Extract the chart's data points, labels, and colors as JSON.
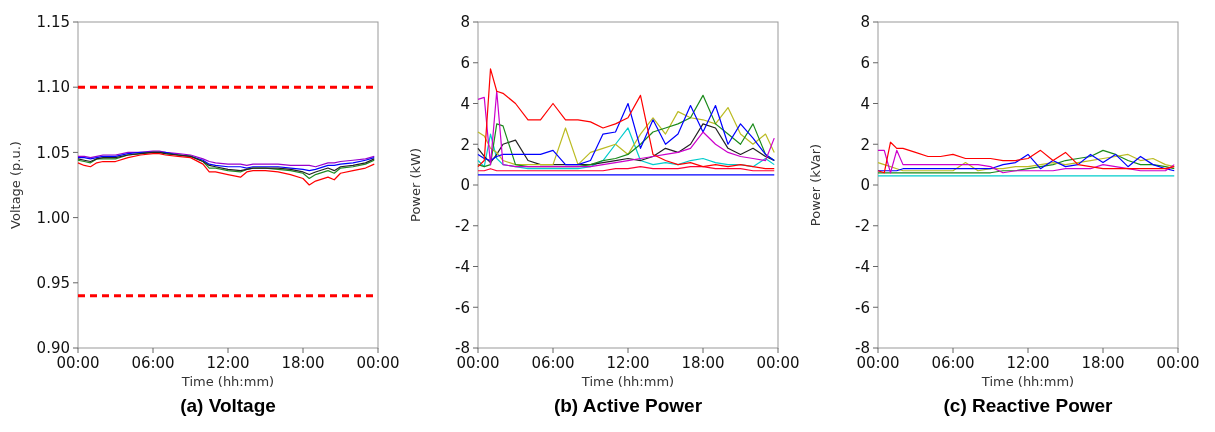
{
  "chart_data": [
    {
      "type": "line",
      "title": "(a)  Voltage",
      "xlabel": "Time (hh:mm)",
      "ylabel": "Voltage (p.u.)",
      "x": [
        0,
        0.5,
        1,
        1.5,
        2,
        3,
        4,
        5,
        6,
        6.5,
        7,
        8,
        9,
        10,
        10.5,
        11,
        12,
        13,
        13.5,
        14,
        15,
        16,
        17,
        18,
        18.5,
        19,
        20,
        20.5,
        21,
        22,
        23,
        23.7
      ],
      "xlim": [
        0,
        24
      ],
      "xticks": [
        {
          "value": 0,
          "label": "00:00"
        },
        {
          "value": 6,
          "label": "06:00"
        },
        {
          "value": 12,
          "label": "12:00"
        },
        {
          "value": 18,
          "label": "18:00"
        },
        {
          "value": 24,
          "label": "00:00"
        }
      ],
      "ylim": [
        0.9,
        1.15
      ],
      "yticks": [
        {
          "value": 0.9,
          "label": "0.90"
        },
        {
          "value": 0.95,
          "label": "0.95"
        },
        {
          "value": 1.0,
          "label": "1.00"
        },
        {
          "value": 1.05,
          "label": "1.05"
        },
        {
          "value": 1.1,
          "label": "1.10"
        },
        {
          "value": 1.15,
          "label": "1.15"
        }
      ],
      "ref_lines": [
        {
          "axis": "y",
          "value": 1.1,
          "color": "#ff0000",
          "line_style": "dashed"
        },
        {
          "axis": "y",
          "value": 0.94,
          "color": "#ff0000",
          "line_style": "dashed"
        }
      ],
      "series": [
        {
          "color": "#9900cc",
          "values": [
            1.047,
            1.047,
            1.046,
            1.047,
            1.048,
            1.048,
            1.05,
            1.05,
            1.051,
            1.051,
            1.05,
            1.049,
            1.048,
            1.045,
            1.043,
            1.042,
            1.041,
            1.041,
            1.04,
            1.041,
            1.041,
            1.041,
            1.04,
            1.04,
            1.04,
            1.039,
            1.042,
            1.042,
            1.043,
            1.044,
            1.045,
            1.047
          ]
        },
        {
          "color": "#0000ff",
          "values": [
            1.046,
            1.046,
            1.045,
            1.046,
            1.047,
            1.047,
            1.049,
            1.05,
            1.05,
            1.05,
            1.05,
            1.048,
            1.047,
            1.044,
            1.041,
            1.04,
            1.039,
            1.039,
            1.038,
            1.039,
            1.039,
            1.039,
            1.038,
            1.037,
            1.036,
            1.037,
            1.04,
            1.04,
            1.041,
            1.042,
            1.044,
            1.046
          ]
        },
        {
          "color": "#228b22",
          "values": [
            1.044,
            1.043,
            1.042,
            1.045,
            1.045,
            1.045,
            1.048,
            1.049,
            1.05,
            1.05,
            1.049,
            1.048,
            1.047,
            1.043,
            1.038,
            1.038,
            1.036,
            1.035,
            1.037,
            1.038,
            1.038,
            1.037,
            1.036,
            1.034,
            1.03,
            1.033,
            1.036,
            1.034,
            1.038,
            1.039,
            1.041,
            1.044
          ]
        },
        {
          "color": "#222222",
          "values": [
            1.045,
            1.044,
            1.043,
            1.045,
            1.046,
            1.046,
            1.048,
            1.049,
            1.05,
            1.05,
            1.049,
            1.048,
            1.047,
            1.043,
            1.04,
            1.039,
            1.037,
            1.036,
            1.037,
            1.038,
            1.038,
            1.038,
            1.037,
            1.035,
            1.033,
            1.035,
            1.038,
            1.036,
            1.039,
            1.04,
            1.042,
            1.045
          ]
        },
        {
          "color": "#ff0000",
          "values": [
            1.042,
            1.04,
            1.039,
            1.042,
            1.043,
            1.043,
            1.046,
            1.048,
            1.049,
            1.049,
            1.048,
            1.047,
            1.046,
            1.041,
            1.035,
            1.035,
            1.033,
            1.031,
            1.035,
            1.036,
            1.036,
            1.035,
            1.033,
            1.03,
            1.025,
            1.028,
            1.031,
            1.029,
            1.034,
            1.036,
            1.038,
            1.041
          ]
        }
      ]
    },
    {
      "type": "line",
      "title": "(b)  Active Power",
      "xlabel": "Time (hh:mm)",
      "ylabel": "Power (kW)",
      "x": [
        0,
        0.5,
        1,
        1.5,
        2,
        3,
        4,
        5,
        6,
        7,
        8,
        9,
        10,
        11,
        12,
        13,
        14,
        15,
        16,
        17,
        18,
        19,
        20,
        21,
        22,
        23,
        23.7
      ],
      "xlim": [
        0,
        24
      ],
      "xticks": [
        {
          "value": 0,
          "label": "00:00"
        },
        {
          "value": 6,
          "label": "06:00"
        },
        {
          "value": 12,
          "label": "12:00"
        },
        {
          "value": 18,
          "label": "18:00"
        },
        {
          "value": 24,
          "label": "00:00"
        }
      ],
      "ylim": [
        -8,
        8
      ],
      "yticks": [
        -8,
        -6,
        -4,
        -2,
        0,
        2,
        4,
        6,
        8
      ],
      "series": [
        {
          "color": "#0000ff",
          "values": [
            0.5,
            0.5,
            0.5,
            0.5,
            0.5,
            0.5,
            0.5,
            0.5,
            0.5,
            0.5,
            0.5,
            0.5,
            0.5,
            0.5,
            0.5,
            0.5,
            0.5,
            0.5,
            0.5,
            0.5,
            0.5,
            0.5,
            0.5,
            0.5,
            0.5,
            0.5,
            0.5
          ]
        },
        {
          "color": "#ff0033",
          "values": [
            0.7,
            0.7,
            0.8,
            0.7,
            0.7,
            0.7,
            0.7,
            0.7,
            0.7,
            0.7,
            0.7,
            0.7,
            0.7,
            0.8,
            0.8,
            0.9,
            0.8,
            0.8,
            0.8,
            0.9,
            0.9,
            0.8,
            0.8,
            0.8,
            0.7,
            0.7,
            0.7
          ]
        },
        {
          "color": "#00cccc",
          "values": [
            1.2,
            0.9,
            2.5,
            1.3,
            1.0,
            0.9,
            0.8,
            0.8,
            0.8,
            0.8,
            0.8,
            0.9,
            1.2,
            2.0,
            2.8,
            1.2,
            1.0,
            1.1,
            1.0,
            1.2,
            1.3,
            1.1,
            1.0,
            1.0,
            0.9,
            1.3,
            1.0
          ]
        },
        {
          "color": "#222222",
          "values": [
            1.8,
            1.4,
            1.1,
            1.5,
            2.0,
            2.2,
            1.2,
            1.0,
            1.0,
            1.0,
            1.0,
            1.0,
            1.1,
            1.2,
            1.3,
            1.2,
            1.4,
            1.8,
            1.6,
            2.0,
            3.0,
            2.8,
            1.8,
            1.5,
            1.8,
            1.4,
            1.2
          ]
        },
        {
          "color": "#bbbb22",
          "values": [
            2.6,
            2.4,
            1.8,
            1.6,
            1.2,
            1.0,
            1.0,
            1.0,
            1.0,
            2.8,
            1.0,
            1.6,
            1.8,
            2.0,
            1.5,
            2.5,
            3.3,
            2.5,
            3.6,
            3.3,
            3.2,
            3.0,
            3.8,
            2.5,
            2.0,
            2.5,
            1.6
          ]
        },
        {
          "color": "#1a8a1a",
          "values": [
            1.0,
            0.9,
            1.0,
            3.0,
            2.9,
            1.0,
            0.9,
            0.9,
            0.9,
            0.9,
            0.9,
            1.0,
            1.2,
            1.3,
            1.5,
            2.0,
            2.6,
            2.8,
            3.0,
            3.3,
            4.4,
            3.0,
            2.5,
            2.0,
            3.0,
            1.5,
            1.2
          ]
        },
        {
          "color": "#0000ff",
          "values": [
            1.5,
            1.3,
            1.2,
            1.4,
            1.5,
            1.5,
            1.5,
            1.5,
            1.7,
            1.0,
            1.0,
            1.2,
            2.5,
            2.6,
            4.0,
            1.8,
            3.2,
            2.0,
            2.5,
            3.9,
            2.6,
            3.9,
            2.0,
            3.0,
            2.3,
            1.5,
            1.2
          ]
        },
        {
          "color": "#cc00cc",
          "values": [
            4.2,
            4.3,
            1.0,
            4.6,
            1.0,
            0.9,
            0.9,
            0.9,
            0.9,
            0.9,
            0.9,
            0.9,
            1.0,
            1.1,
            1.2,
            1.3,
            1.4,
            1.5,
            1.6,
            1.8,
            2.6,
            2.0,
            1.6,
            1.4,
            1.3,
            1.2,
            2.3
          ]
        },
        {
          "color": "#ff0000",
          "values": [
            0.9,
            1.2,
            5.7,
            4.6,
            4.5,
            4.0,
            3.2,
            3.2,
            4.0,
            3.2,
            3.2,
            3.1,
            2.8,
            3.0,
            3.3,
            4.4,
            1.5,
            1.2,
            1.0,
            1.1,
            0.9,
            1.0,
            0.9,
            1.0,
            0.9,
            0.8,
            0.8
          ]
        }
      ]
    },
    {
      "type": "line",
      "title": "(c)  Reactive Power",
      "xlabel": "Time (hh:mm)",
      "ylabel": "Power (kVar)",
      "x": [
        0,
        0.5,
        1,
        1.5,
        2,
        3,
        4,
        5,
        6,
        7,
        8,
        9,
        10,
        11,
        12,
        13,
        14,
        15,
        16,
        17,
        18,
        19,
        20,
        21,
        22,
        23,
        23.7
      ],
      "xlim": [
        0,
        24
      ],
      "xticks": [
        {
          "value": 0,
          "label": "00:00"
        },
        {
          "value": 6,
          "label": "06:00"
        },
        {
          "value": 12,
          "label": "12:00"
        },
        {
          "value": 18,
          "label": "18:00"
        },
        {
          "value": 24,
          "label": "00:00"
        }
      ],
      "ylim": [
        -8,
        8
      ],
      "yticks": [
        -8,
        -6,
        -4,
        -2,
        0,
        2,
        4,
        6,
        8
      ],
      "series": [
        {
          "color": "#00cccc",
          "values": [
            0.45,
            0.45,
            0.45,
            0.45,
            0.45,
            0.45,
            0.45,
            0.45,
            0.45,
            0.45,
            0.45,
            0.45,
            0.45,
            0.45,
            0.45,
            0.45,
            0.45,
            0.45,
            0.45,
            0.45,
            0.45,
            0.45,
            0.45,
            0.45,
            0.45,
            0.45,
            0.45
          ]
        },
        {
          "color": "#1a8a1a",
          "values": [
            0.6,
            0.6,
            0.6,
            0.6,
            0.6,
            0.6,
            0.6,
            0.6,
            0.6,
            0.6,
            0.6,
            0.6,
            0.7,
            0.7,
            0.8,
            0.9,
            1.0,
            1.2,
            1.3,
            1.4,
            1.7,
            1.5,
            1.2,
            1.0,
            1.0,
            0.9,
            0.8
          ]
        },
        {
          "color": "#bbbb22",
          "values": [
            1.1,
            1.0,
            0.9,
            0.8,
            0.7,
            0.7,
            0.7,
            0.7,
            0.7,
            1.1,
            0.7,
            0.8,
            0.8,
            0.9,
            0.9,
            1.0,
            1.1,
            1.0,
            1.1,
            1.2,
            1.3,
            1.4,
            1.5,
            1.2,
            1.3,
            1.0,
            0.9
          ]
        },
        {
          "color": "#0000ff",
          "values": [
            0.7,
            0.7,
            0.7,
            0.7,
            0.8,
            0.8,
            0.8,
            0.8,
            0.8,
            0.8,
            0.8,
            0.8,
            1.0,
            1.1,
            1.5,
            0.8,
            1.2,
            0.9,
            1.0,
            1.5,
            1.1,
            1.5,
            0.9,
            1.4,
            1.0,
            0.8,
            0.7
          ]
        },
        {
          "color": "#cc00cc",
          "values": [
            1.7,
            1.7,
            0.6,
            1.7,
            1.0,
            1.0,
            1.0,
            1.0,
            1.0,
            1.0,
            1.0,
            0.9,
            0.6,
            0.7,
            0.7,
            0.7,
            0.7,
            0.8,
            0.8,
            0.8,
            1.0,
            0.9,
            0.8,
            0.7,
            0.7,
            0.7,
            1.0
          ]
        },
        {
          "color": "#ff0000",
          "values": [
            0.7,
            0.6,
            2.1,
            1.8,
            1.8,
            1.6,
            1.4,
            1.4,
            1.5,
            1.3,
            1.3,
            1.3,
            1.2,
            1.2,
            1.3,
            1.7,
            1.2,
            1.6,
            1.0,
            0.9,
            0.8,
            0.8,
            0.8,
            0.8,
            0.8,
            0.8,
            0.9
          ]
        }
      ]
    }
  ]
}
